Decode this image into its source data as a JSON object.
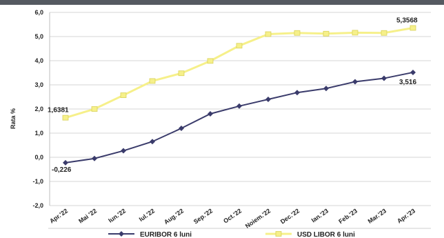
{
  "chart_data": {
    "type": "line",
    "ylabel": "Rata %",
    "xlabel": "",
    "ylim": [
      -2.0,
      6.0
    ],
    "yticks": [
      "6,0",
      "5,0",
      "4,0",
      "3,0",
      "2,0",
      "1,0",
      "0,0",
      "-1,0",
      "-2,0"
    ],
    "ytick_values": [
      6,
      5,
      4,
      3,
      2,
      1,
      0,
      -1,
      -2
    ],
    "categories": [
      "Apr.'22",
      "Mai '22",
      "Iun.'22",
      "Iul.'22",
      "Aug.'22",
      "Sep.'22",
      "Oct.'22",
      "Noiem.'22",
      "Dec.'22",
      "Ian.'23",
      "Feb.'23",
      "Mar.'23",
      "Apr.'23"
    ],
    "grid": "horizontal",
    "legend_position": "bottom",
    "series": [
      {
        "name": "EURIBOR 6 luni",
        "color": "#3a3b6b",
        "marker": "diamond",
        "values": [
          -0.226,
          -0.05,
          0.27,
          0.65,
          1.2,
          1.8,
          2.12,
          2.4,
          2.68,
          2.85,
          3.13,
          3.27,
          3.516
        ]
      },
      {
        "name": "USD LIBOR 6 luni",
        "color": "#f6f08a",
        "marker": "square",
        "values": [
          1.6381,
          2.0,
          2.57,
          3.16,
          3.48,
          3.99,
          4.62,
          5.1,
          5.15,
          5.12,
          5.16,
          5.15,
          5.3568
        ]
      }
    ],
    "data_labels": [
      {
        "series": 0,
        "index": 0,
        "text": "-0,226"
      },
      {
        "series": 0,
        "index": 12,
        "text": "3,516"
      },
      {
        "series": 1,
        "index": 0,
        "text": "1,6381"
      },
      {
        "series": 1,
        "index": 12,
        "text": "5,3568"
      }
    ]
  }
}
